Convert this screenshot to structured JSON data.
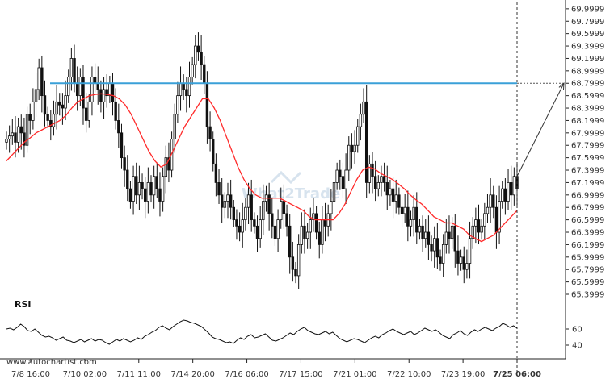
{
  "source_text": "www.autochartist.com",
  "watermark_text": "What2Trade",
  "colors": {
    "background": "#ffffff",
    "candles": "#111111",
    "moving_average": "#ff2a2a",
    "level_line": "#3aa0d8",
    "rsi": "#111111",
    "projection": "#333333"
  },
  "chart_data": [
    {
      "type": "candlestick",
      "title": "",
      "ylim": [
        65.4,
        70.05
      ],
      "y_ticks": [
        "69.9999",
        "69.7999",
        "69.5999",
        "69.3999",
        "69.1999",
        "68.9999",
        "68.7999",
        "68.5999",
        "68.3999",
        "68.1999",
        "67.9999",
        "67.7999",
        "67.5999",
        "67.3999",
        "67.1999",
        "66.9999",
        "66.7999",
        "66.5999",
        "66.3999",
        "66.1999",
        "65.9999",
        "65.7999",
        "65.5999",
        "65.3999"
      ],
      "x_ticks": [
        "7/8 16:00",
        "7/10 02:00",
        "7/11 11:00",
        "7/14 20:00",
        "7/16 06:00",
        "7/17 15:00",
        "7/21 01:00",
        "7/22 10:00",
        "7/23 19:00",
        "7/25 06:00"
      ],
      "close_series": [
        67.9,
        67.95,
        68.0,
        67.85,
        68.1,
        68.0,
        67.8,
        68.3,
        68.2,
        68.5,
        68.7,
        69.05,
        68.6,
        68.3,
        68.2,
        68.1,
        68.3,
        68.5,
        68.45,
        68.4,
        68.6,
        68.9,
        69.2,
        68.8,
        68.6,
        68.9,
        68.4,
        68.2,
        68.5,
        68.9,
        68.8,
        68.7,
        68.5,
        68.7,
        68.6,
        68.8,
        68.5,
        68.2,
        68.0,
        67.6,
        67.4,
        67.1,
        66.9,
        67.3,
        67.0,
        67.2,
        67.1,
        66.9,
        67.2,
        67.0,
        67.3,
        67.1,
        66.9,
        67.3,
        67.6,
        67.4,
        67.9,
        68.3,
        68.6,
        68.8,
        68.7,
        68.6,
        68.9,
        69.1,
        69.4,
        69.3,
        69.1,
        68.8,
        68.1,
        67.9,
        67.5,
        67.2,
        67.0,
        66.8,
        66.9,
        67.0,
        66.8,
        66.6,
        66.5,
        66.4,
        66.6,
        66.8,
        67.0,
        66.6,
        66.5,
        66.3,
        66.6,
        66.9,
        67.0,
        66.7,
        66.5,
        66.3,
        66.6,
        66.9,
        66.7,
        66.5,
        66.0,
        65.8,
        65.7,
        66.2,
        66.5,
        66.3,
        66.4,
        66.6,
        66.7,
        66.4,
        66.2,
        66.6,
        66.5,
        66.7,
        66.9,
        67.2,
        67.4,
        67.3,
        67.1,
        67.4,
        67.8,
        67.7,
        67.8,
        68.1,
        68.3,
        68.5,
        67.2,
        67.5,
        67.3,
        67.1,
        67.2,
        67.3,
        67.2,
        67.0,
        67.1,
        66.9,
        67.0,
        66.8,
        66.7,
        66.8,
        66.5,
        66.6,
        66.8,
        66.4,
        66.5,
        66.3,
        66.4,
        66.2,
        66.1,
        66.3,
        66.0,
        65.9,
        66.2,
        66.4,
        66.3,
        66.5,
        66.1,
        65.9,
        66.0,
        65.8,
        65.9,
        66.3,
        66.5,
        66.6,
        66.4,
        66.5,
        66.7,
        66.8,
        67.0,
        66.8,
        66.4,
        66.9,
        67.1,
        66.9,
        67.2,
        67.0,
        67.3,
        67.1
      ],
      "moving_average": [
        67.55,
        67.65,
        67.75,
        67.85,
        67.92,
        68.0,
        68.05,
        68.1,
        68.15,
        68.2,
        68.28,
        68.4,
        68.5,
        68.55,
        68.6,
        68.62,
        68.63,
        68.62,
        68.6,
        68.55,
        68.45,
        68.3,
        68.1,
        67.9,
        67.7,
        67.55,
        67.45,
        67.5,
        67.7,
        67.9,
        68.1,
        68.25,
        68.4,
        68.55,
        68.55,
        68.4,
        68.2,
        67.95,
        67.7,
        67.45,
        67.25,
        67.1,
        67.0,
        66.95,
        66.95,
        66.95,
        66.95,
        66.9,
        66.85,
        66.8,
        66.75,
        66.65,
        66.6,
        66.6,
        66.6,
        66.6,
        66.7,
        66.85,
        67.05,
        67.25,
        67.4,
        67.45,
        67.42,
        67.35,
        67.3,
        67.25,
        67.18,
        67.1,
        67.0,
        66.92,
        66.85,
        66.75,
        66.65,
        66.6,
        66.55,
        66.55,
        66.5,
        66.45,
        66.35,
        66.3,
        66.25,
        66.3,
        66.35,
        66.45,
        66.55,
        66.65,
        66.75
      ],
      "level_line": 68.7999,
      "projection_target": 68.7999,
      "last_price": 67.3,
      "levels": "",
      "grid": false,
      "legend": "none"
    },
    {
      "type": "line",
      "title": "RSI",
      "ylim": [
        30,
        90
      ],
      "y_ticks": [
        "60",
        "40"
      ],
      "values": [
        60,
        61,
        59,
        62,
        66,
        63,
        58,
        57,
        60,
        56,
        52,
        50,
        51,
        49,
        46,
        48,
        50,
        46,
        45,
        43,
        45,
        47,
        44,
        46,
        48,
        45,
        47,
        46,
        43,
        41,
        44,
        47,
        45,
        48,
        46,
        44,
        46,
        49,
        47,
        51,
        53,
        56,
        58,
        62,
        64,
        61,
        59,
        63,
        66,
        69,
        71,
        70,
        68,
        67,
        65,
        63,
        59,
        55,
        50,
        48,
        47,
        45,
        43,
        44,
        42,
        46,
        49,
        47,
        51,
        53,
        49,
        50,
        52,
        54,
        50,
        46,
        45,
        47,
        49,
        52,
        55,
        53,
        57,
        60,
        62,
        58,
        56,
        54,
        53,
        55,
        57,
        54,
        56,
        52,
        48,
        46,
        44,
        46,
        48,
        47,
        45,
        43,
        46,
        49,
        51,
        49,
        53,
        55,
        58,
        60,
        57,
        55,
        53,
        55,
        57,
        53,
        55,
        58,
        61,
        59,
        57,
        59,
        56,
        52,
        50,
        48,
        53,
        55,
        58,
        54,
        52,
        56,
        59,
        57,
        60,
        62,
        60,
        58,
        61,
        63,
        67,
        65,
        62,
        64,
        61
      ]
    }
  ]
}
